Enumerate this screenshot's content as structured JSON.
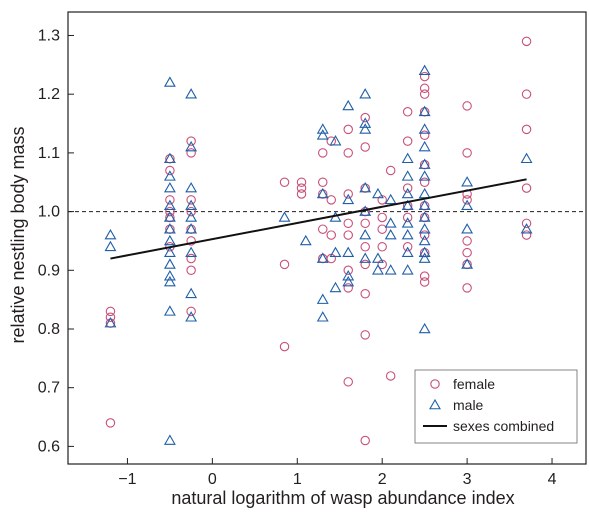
{
  "chart_data": {
    "type": "scatter",
    "title": "",
    "xlabel": "natural logarithm of wasp abundance index",
    "ylabel": "relative nestling body mass",
    "xlim": [
      -1.7,
      4.4
    ],
    "ylim": [
      0.57,
      1.34
    ],
    "xticks": [
      -1,
      0,
      1,
      2,
      3,
      4
    ],
    "xtick_labels": [
      "−1",
      "0",
      "1",
      "2",
      "3",
      "4"
    ],
    "yticks": [
      0.6,
      0.7,
      0.8,
      0.9,
      1.0,
      1.1,
      1.2,
      1.3
    ],
    "ytick_labels": [
      "0.6",
      "0.7",
      "0.8",
      "0.9",
      "1.0",
      "1.1",
      "1.2",
      "1.3"
    ],
    "grid": false,
    "legend_position": "bottom-right",
    "reference_line": {
      "y": 1.0,
      "style": "dashed"
    },
    "series": [
      {
        "name": "female",
        "marker": "circle",
        "color": "#c8507a",
        "points": [
          [
            -1.2,
            0.83
          ],
          [
            -1.2,
            0.82
          ],
          [
            -1.2,
            0.81
          ],
          [
            -1.2,
            0.64
          ],
          [
            -0.5,
            1.09
          ],
          [
            -0.5,
            1.07
          ],
          [
            -0.5,
            1.02
          ],
          [
            -0.5,
            1.0
          ],
          [
            -0.5,
            0.99
          ],
          [
            -0.5,
            0.97
          ],
          [
            -0.5,
            0.94
          ],
          [
            -0.25,
            1.12
          ],
          [
            -0.25,
            1.1
          ],
          [
            -0.25,
            1.02
          ],
          [
            -0.25,
            1.0
          ],
          [
            -0.25,
            0.97
          ],
          [
            -0.25,
            0.95
          ],
          [
            -0.25,
            0.92
          ],
          [
            -0.25,
            0.9
          ],
          [
            -0.25,
            0.83
          ],
          [
            0.85,
            1.05
          ],
          [
            0.85,
            0.91
          ],
          [
            0.85,
            0.77
          ],
          [
            1.05,
            1.05
          ],
          [
            1.05,
            1.04
          ],
          [
            1.05,
            1.03
          ],
          [
            1.3,
            1.1
          ],
          [
            1.3,
            1.05
          ],
          [
            1.3,
            1.03
          ],
          [
            1.3,
            0.97
          ],
          [
            1.3,
            0.92
          ],
          [
            1.4,
            1.12
          ],
          [
            1.4,
            1.02
          ],
          [
            1.4,
            0.96
          ],
          [
            1.4,
            0.92
          ],
          [
            1.6,
            1.14
          ],
          [
            1.6,
            1.1
          ],
          [
            1.6,
            1.03
          ],
          [
            1.6,
            0.98
          ],
          [
            1.6,
            0.96
          ],
          [
            1.6,
            0.9
          ],
          [
            1.6,
            0.87
          ],
          [
            1.6,
            0.71
          ],
          [
            1.8,
            1.16
          ],
          [
            1.8,
            1.11
          ],
          [
            1.8,
            1.04
          ],
          [
            1.8,
            1.0
          ],
          [
            1.8,
            0.98
          ],
          [
            1.8,
            0.94
          ],
          [
            1.8,
            0.91
          ],
          [
            1.8,
            0.86
          ],
          [
            1.8,
            0.79
          ],
          [
            1.8,
            0.61
          ],
          [
            2.0,
            1.02
          ],
          [
            2.0,
            0.99
          ],
          [
            2.0,
            0.97
          ],
          [
            2.0,
            0.94
          ],
          [
            2.0,
            0.91
          ],
          [
            2.1,
            1.07
          ],
          [
            2.1,
            0.72
          ],
          [
            2.3,
            1.17
          ],
          [
            2.3,
            1.12
          ],
          [
            2.3,
            1.04
          ],
          [
            2.3,
            1.01
          ],
          [
            2.3,
            0.99
          ],
          [
            2.3,
            0.94
          ],
          [
            2.5,
            1.23
          ],
          [
            2.5,
            1.21
          ],
          [
            2.5,
            1.2
          ],
          [
            2.5,
            1.17
          ],
          [
            2.5,
            1.13
          ],
          [
            2.5,
            1.08
          ],
          [
            2.5,
            1.05
          ],
          [
            2.5,
            1.01
          ],
          [
            2.5,
            0.99
          ],
          [
            2.5,
            0.96
          ],
          [
            2.5,
            0.93
          ],
          [
            2.5,
            0.89
          ],
          [
            2.5,
            0.88
          ],
          [
            3.0,
            1.18
          ],
          [
            3.0,
            1.1
          ],
          [
            3.0,
            1.03
          ],
          [
            3.0,
            1.02
          ],
          [
            3.0,
            0.95
          ],
          [
            3.0,
            0.93
          ],
          [
            3.0,
            0.91
          ],
          [
            3.0,
            0.87
          ],
          [
            3.7,
            1.29
          ],
          [
            3.7,
            1.2
          ],
          [
            3.7,
            1.14
          ],
          [
            3.7,
            1.04
          ],
          [
            3.7,
            0.98
          ],
          [
            3.7,
            0.96
          ]
        ]
      },
      {
        "name": "male",
        "marker": "triangle",
        "color": "#1f5fa8",
        "points": [
          [
            -1.2,
            0.96
          ],
          [
            -1.2,
            0.94
          ],
          [
            -1.2,
            0.81
          ],
          [
            -0.5,
            1.22
          ],
          [
            -0.5,
            1.09
          ],
          [
            -0.5,
            1.06
          ],
          [
            -0.5,
            1.04
          ],
          [
            -0.5,
            1.01
          ],
          [
            -0.5,
            0.99
          ],
          [
            -0.5,
            0.97
          ],
          [
            -0.5,
            0.95
          ],
          [
            -0.5,
            0.93
          ],
          [
            -0.5,
            0.91
          ],
          [
            -0.5,
            0.89
          ],
          [
            -0.5,
            0.88
          ],
          [
            -0.5,
            0.83
          ],
          [
            -0.5,
            0.61
          ],
          [
            -0.25,
            1.2
          ],
          [
            -0.25,
            1.11
          ],
          [
            -0.25,
            1.04
          ],
          [
            -0.25,
            1.01
          ],
          [
            -0.25,
            0.99
          ],
          [
            -0.25,
            0.97
          ],
          [
            -0.25,
            0.93
          ],
          [
            -0.25,
            0.86
          ],
          [
            -0.25,
            0.82
          ],
          [
            0.85,
            0.99
          ],
          [
            1.1,
            0.95
          ],
          [
            1.3,
            1.14
          ],
          [
            1.3,
            1.13
          ],
          [
            1.3,
            1.03
          ],
          [
            1.3,
            0.92
          ],
          [
            1.3,
            0.85
          ],
          [
            1.3,
            0.82
          ],
          [
            1.45,
            1.12
          ],
          [
            1.45,
            0.99
          ],
          [
            1.45,
            0.93
          ],
          [
            1.45,
            0.87
          ],
          [
            1.6,
            1.18
          ],
          [
            1.6,
            1.02
          ],
          [
            1.6,
            0.93
          ],
          [
            1.6,
            0.89
          ],
          [
            1.6,
            0.88
          ],
          [
            1.8,
            1.2
          ],
          [
            1.8,
            1.15
          ],
          [
            1.8,
            1.14
          ],
          [
            1.8,
            1.04
          ],
          [
            1.8,
            1.0
          ],
          [
            1.8,
            0.96
          ],
          [
            1.8,
            0.92
          ],
          [
            1.95,
            1.03
          ],
          [
            1.95,
            0.92
          ],
          [
            1.95,
            0.9
          ],
          [
            2.1,
            1.02
          ],
          [
            2.1,
            0.98
          ],
          [
            2.1,
            0.96
          ],
          [
            2.1,
            0.9
          ],
          [
            2.3,
            1.09
          ],
          [
            2.3,
            1.06
          ],
          [
            2.3,
            1.03
          ],
          [
            2.3,
            1.01
          ],
          [
            2.3,
            0.98
          ],
          [
            2.3,
            0.96
          ],
          [
            2.3,
            0.93
          ],
          [
            2.3,
            0.9
          ],
          [
            2.5,
            1.24
          ],
          [
            2.5,
            1.17
          ],
          [
            2.5,
            1.14
          ],
          [
            2.5,
            1.11
          ],
          [
            2.5,
            1.08
          ],
          [
            2.5,
            1.06
          ],
          [
            2.5,
            1.03
          ],
          [
            2.5,
            1.01
          ],
          [
            2.5,
            0.99
          ],
          [
            2.5,
            0.97
          ],
          [
            2.5,
            0.95
          ],
          [
            2.5,
            0.93
          ],
          [
            2.5,
            0.92
          ],
          [
            2.5,
            0.8
          ],
          [
            3.0,
            1.05
          ],
          [
            3.0,
            1.01
          ],
          [
            3.0,
            0.97
          ],
          [
            3.0,
            0.91
          ],
          [
            3.7,
            1.09
          ],
          [
            3.7,
            0.97
          ]
        ]
      }
    ],
    "fit_line": {
      "name": "sexes combined",
      "x": [
        -1.2,
        3.7
      ],
      "y": [
        0.92,
        1.055
      ],
      "color": "#111111"
    }
  }
}
